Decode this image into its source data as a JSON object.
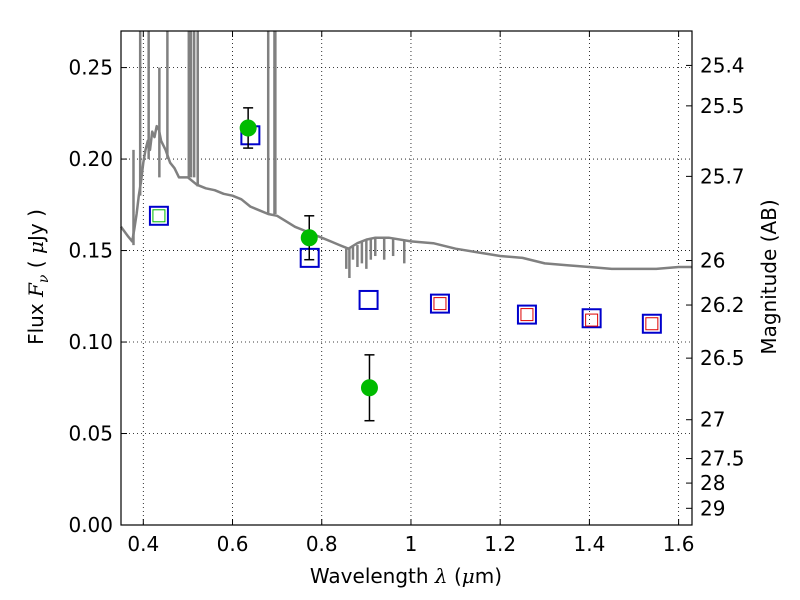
{
  "chart_data": {
    "type": "scatter",
    "xlabel": {
      "prefix": "Wavelength  ",
      "symbol": "λ",
      "unit": " (",
      "mu": "μ",
      "unit_end": "m)"
    },
    "ylabel": {
      "prefix": "Flux  ",
      "symbol": "F",
      "sub": "ν",
      "unit_open": "  ( ",
      "mu": "μ",
      "unit_end": "Jy )"
    },
    "y2label": "Magnitude (AB)",
    "xlim": [
      0.35,
      1.63
    ],
    "ylim": [
      0.0,
      0.27
    ],
    "grid": true,
    "x_ticks": [
      0.4,
      0.6,
      0.8,
      1.0,
      1.2,
      1.4,
      1.6
    ],
    "x_tick_labels": [
      "0.4",
      "0.6",
      "0.8",
      "1",
      "1.2",
      "1.4",
      "1.6"
    ],
    "y_ticks": [
      0.0,
      0.05,
      0.1,
      0.15,
      0.2,
      0.25
    ],
    "y_tick_labels": [
      "0.00",
      "0.05",
      "0.10",
      "0.15",
      "0.20",
      "0.25"
    ],
    "y2_tick_labels": [
      "25.4",
      "25.5",
      "25.7",
      "26",
      "26.2",
      "26.5",
      "27",
      "27.5",
      "28",
      "29"
    ],
    "series": [
      {
        "kind": "line",
        "color": "#808080",
        "points": [
          [
            0.35,
            0.163
          ],
          [
            0.365,
            0.158
          ],
          [
            0.375,
            0.155
          ],
          [
            0.38,
            0.162
          ],
          [
            0.385,
            0.17
          ],
          [
            0.39,
            0.18
          ],
          [
            0.395,
            0.188
          ],
          [
            0.4,
            0.198
          ],
          [
            0.405,
            0.205
          ],
          [
            0.41,
            0.21
          ],
          [
            0.415,
            0.205
          ],
          [
            0.42,
            0.215
          ],
          [
            0.425,
            0.212
          ],
          [
            0.43,
            0.218
          ],
          [
            0.435,
            0.216
          ],
          [
            0.44,
            0.21
          ],
          [
            0.45,
            0.205
          ],
          [
            0.46,
            0.198
          ],
          [
            0.47,
            0.195
          ],
          [
            0.48,
            0.19
          ],
          [
            0.5,
            0.19
          ],
          [
            0.52,
            0.186
          ],
          [
            0.54,
            0.184
          ],
          [
            0.56,
            0.183
          ],
          [
            0.58,
            0.181
          ],
          [
            0.6,
            0.18
          ],
          [
            0.62,
            0.178
          ],
          [
            0.64,
            0.174
          ],
          [
            0.66,
            0.172
          ],
          [
            0.68,
            0.17
          ],
          [
            0.7,
            0.169
          ],
          [
            0.72,
            0.166
          ],
          [
            0.74,
            0.163
          ],
          [
            0.76,
            0.161
          ],
          [
            0.78,
            0.159
          ],
          [
            0.8,
            0.157
          ],
          [
            0.82,
            0.155
          ],
          [
            0.84,
            0.153
          ],
          [
            0.86,
            0.151
          ],
          [
            0.88,
            0.154
          ],
          [
            0.9,
            0.156
          ],
          [
            0.92,
            0.157
          ],
          [
            0.95,
            0.157
          ],
          [
            1.0,
            0.155
          ],
          [
            1.05,
            0.154
          ],
          [
            1.1,
            0.151
          ],
          [
            1.15,
            0.149
          ],
          [
            1.2,
            0.147
          ],
          [
            1.25,
            0.146
          ],
          [
            1.3,
            0.143
          ],
          [
            1.35,
            0.142
          ],
          [
            1.4,
            0.141
          ],
          [
            1.45,
            0.14
          ],
          [
            1.5,
            0.14
          ],
          [
            1.55,
            0.14
          ],
          [
            1.6,
            0.141
          ],
          [
            1.63,
            0.141
          ]
        ],
        "spikes": [
          [
            0.378,
            0.153,
            0.205
          ],
          [
            0.393,
            0.18,
            0.27
          ],
          [
            0.412,
            0.2,
            0.27
          ],
          [
            0.436,
            0.19,
            0.25
          ],
          [
            0.454,
            0.2,
            0.27
          ],
          [
            0.502,
            0.19,
            0.27
          ],
          [
            0.507,
            0.19,
            0.27
          ],
          [
            0.514,
            0.19,
            0.27
          ],
          [
            0.522,
            0.185,
            0.27
          ],
          [
            0.68,
            0.17,
            0.27
          ],
          [
            0.694,
            0.17,
            0.27
          ],
          [
            0.696,
            0.17,
            0.27
          ],
          [
            0.855,
            0.151,
            0.14
          ],
          [
            0.862,
            0.151,
            0.135
          ],
          [
            0.87,
            0.152,
            0.145
          ],
          [
            0.88,
            0.153,
            0.141
          ],
          [
            0.89,
            0.155,
            0.143
          ],
          [
            0.9,
            0.156,
            0.14
          ],
          [
            0.91,
            0.157,
            0.145
          ],
          [
            0.92,
            0.157,
            0.147
          ],
          [
            0.94,
            0.157,
            0.145
          ],
          [
            0.96,
            0.157,
            0.147
          ],
          [
            0.985,
            0.156,
            0.143
          ]
        ]
      },
      {
        "kind": "points-with-error",
        "color": "#00bb00",
        "points": [
          {
            "x": 0.635,
            "y": 0.217,
            "err": 0.011
          },
          {
            "x": 0.772,
            "y": 0.157,
            "err": 0.012
          },
          {
            "x": 0.907,
            "y": 0.075,
            "err": 0.018
          }
        ]
      },
      {
        "kind": "open-squares",
        "color": "#0000cc",
        "points": [
          {
            "x": 0.435,
            "y": 0.169
          },
          {
            "x": 0.64,
            "y": 0.213
          },
          {
            "x": 0.773,
            "y": 0.146
          },
          {
            "x": 0.905,
            "y": 0.123
          },
          {
            "x": 1.065,
            "y": 0.121
          },
          {
            "x": 1.26,
            "y": 0.115
          },
          {
            "x": 1.405,
            "y": 0.113
          },
          {
            "x": 1.54,
            "y": 0.11
          }
        ]
      },
      {
        "kind": "small-squares-green",
        "color": "#00bb00",
        "points": [
          {
            "x": 0.435,
            "y": 0.169
          }
        ]
      },
      {
        "kind": "small-squares-red",
        "color": "#dd0000",
        "points": [
          {
            "x": 1.065,
            "y": 0.121
          },
          {
            "x": 1.26,
            "y": 0.115
          },
          {
            "x": 1.405,
            "y": 0.112
          },
          {
            "x": 1.54,
            "y": 0.11
          }
        ]
      }
    ]
  }
}
